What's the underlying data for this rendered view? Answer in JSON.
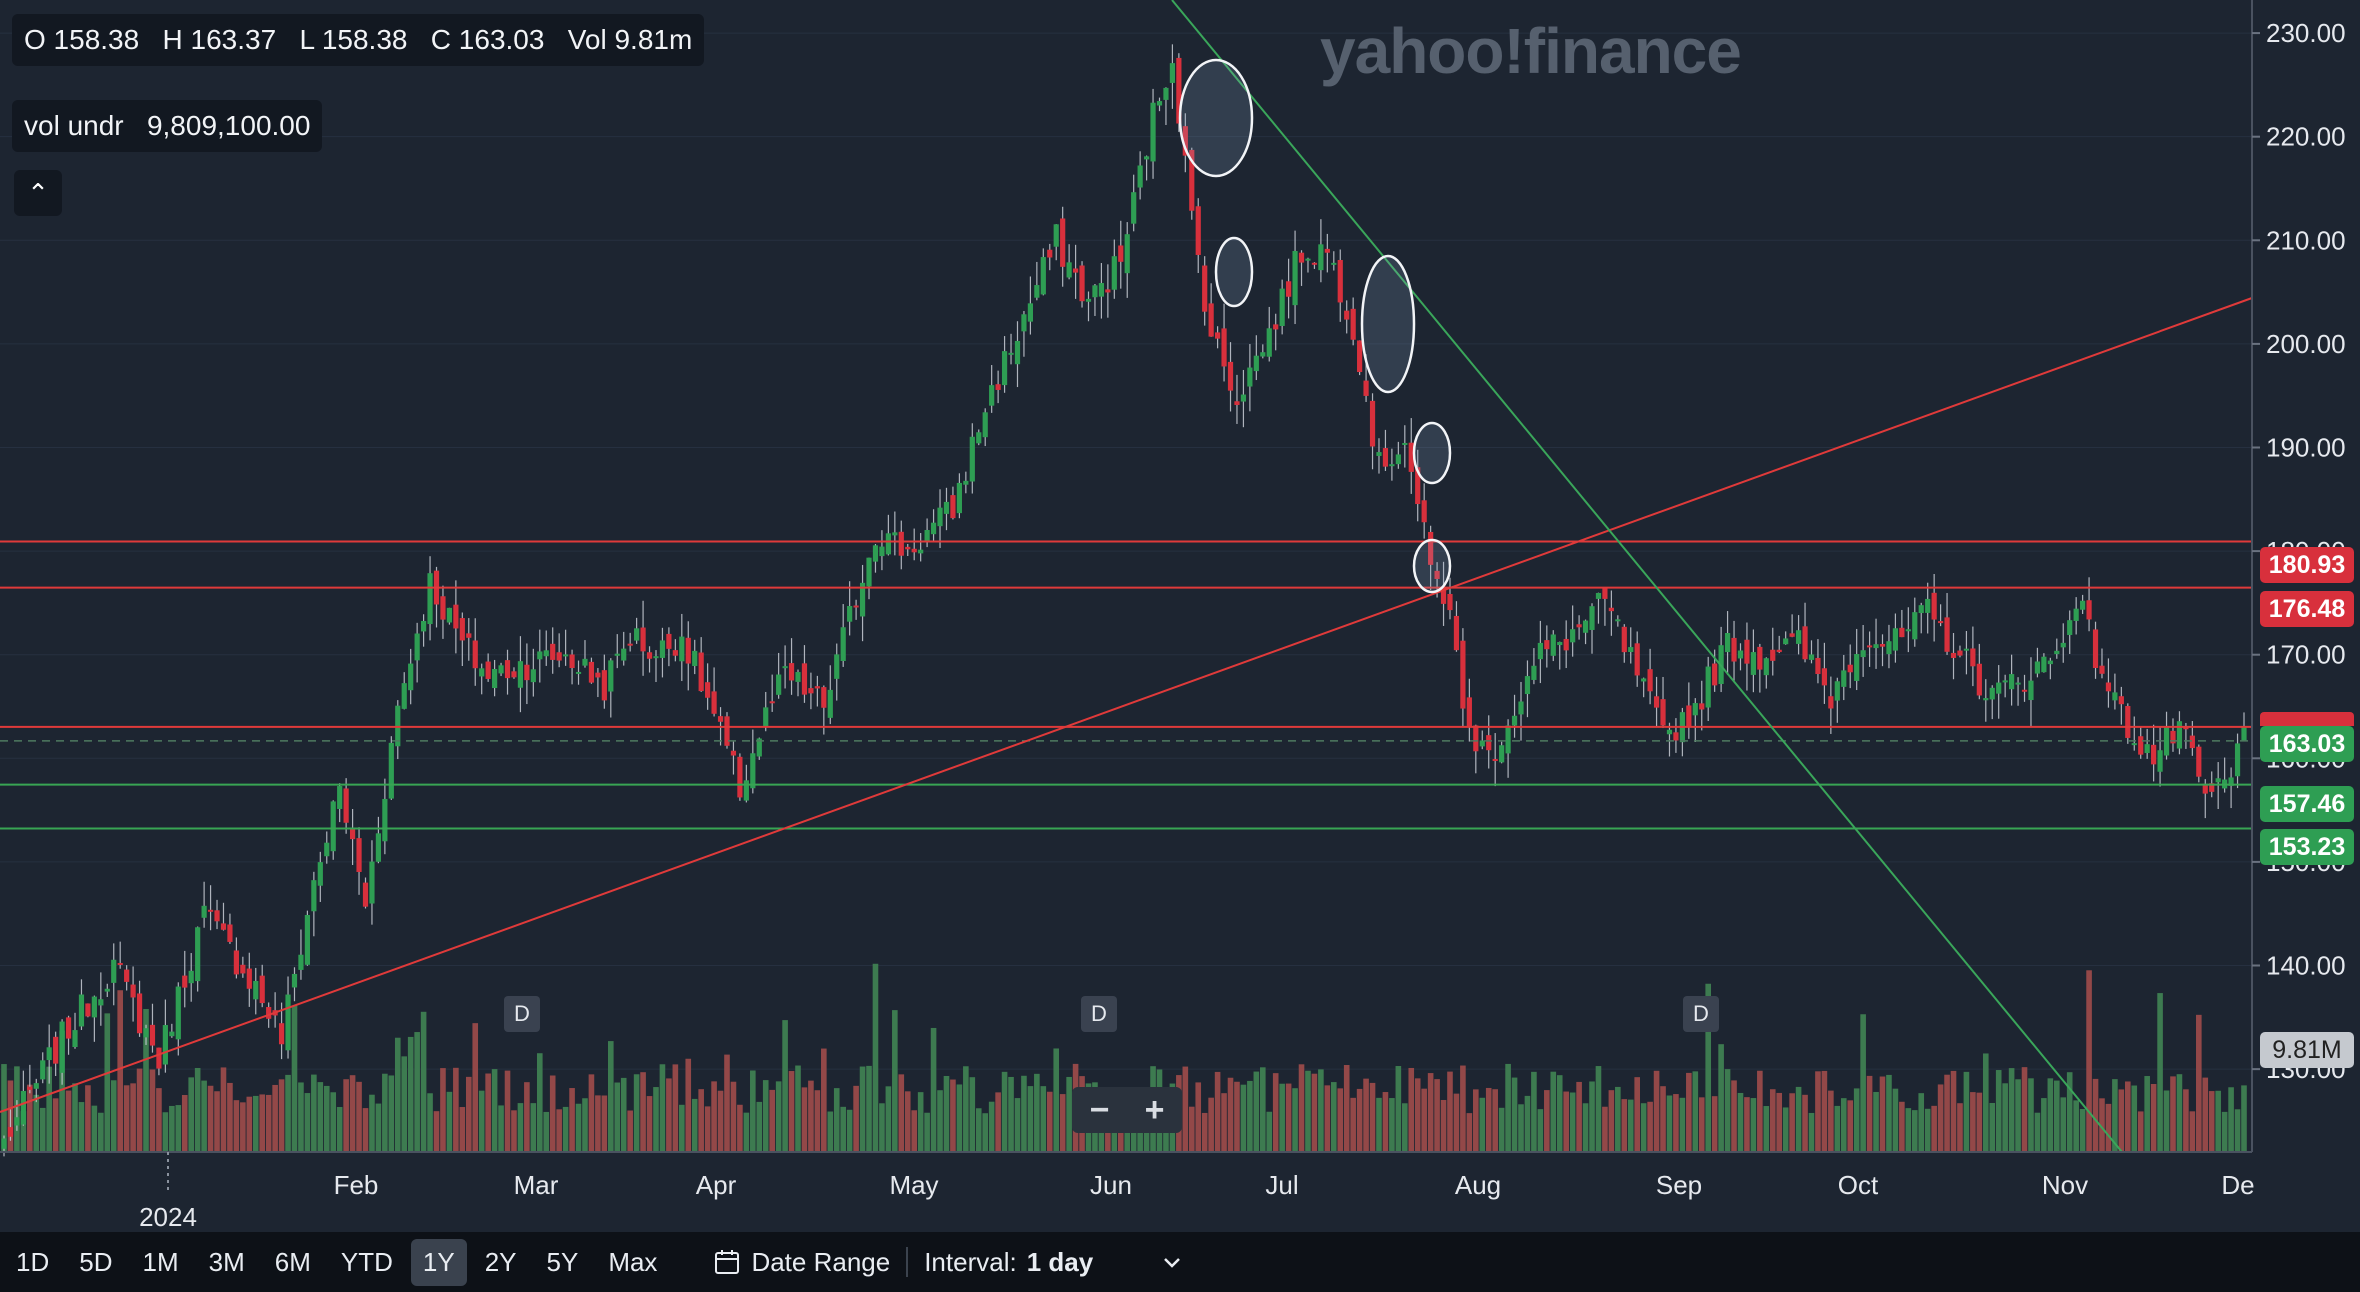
{
  "ohlc_readout": "O 158.38   H 163.37   L 158.38   C 163.03   Vol 9.81m",
  "vol_readout": "vol undr   9,809,100.00",
  "collapse_glyph": "⌃",
  "watermark": "yahoo!finance",
  "zoom": {
    "minus": "−",
    "plus": "+"
  },
  "dividend_marker": "D",
  "price_labels": {
    "r1": "180.93",
    "r2": "176.48",
    "last": "163.03",
    "g1": "157.46",
    "g2": "153.23",
    "vol": "9.81M"
  },
  "colors": {
    "background": "#1d2531",
    "up": "#2e9e53",
    "down": "#d8303c",
    "resistance_line": "#e03a3a",
    "support_line": "#38a553",
    "trend_line": "#3aa65a"
  },
  "axis": {
    "y_ticks": [
      "230.00",
      "220.00",
      "210.00",
      "200.00",
      "190.00",
      "180.00",
      "170.00",
      "160.00",
      "150.00",
      "140.00",
      "130.00"
    ],
    "x_ticks": [
      "Feb",
      "Mar",
      "Apr",
      "May",
      "Jun",
      "Jul",
      "Aug",
      "Sep",
      "Oct",
      "Nov",
      "De"
    ],
    "year_label": "2024"
  },
  "bottom_bar": {
    "ranges": [
      "1D",
      "5D",
      "1M",
      "3M",
      "6M",
      "YTD",
      "1Y",
      "2Y",
      "5Y",
      "Max"
    ],
    "active_range": "1Y",
    "date_range_label": "Date Range",
    "interval_label": "Interval:",
    "interval_value": "1 day"
  },
  "chart_data": {
    "type": "candlestick",
    "y_range": [
      122,
      233
    ],
    "horizontal_levels": [
      180.93,
      176.48,
      163.03,
      157.46,
      153.23
    ],
    "price_path": [
      [
        0,
        123
      ],
      [
        9,
        133
      ],
      [
        17,
        140
      ],
      [
        24,
        131
      ],
      [
        31,
        145
      ],
      [
        39,
        138
      ],
      [
        43,
        133
      ],
      [
        48,
        148
      ],
      [
        52,
        157
      ],
      [
        56,
        146
      ],
      [
        61,
        165
      ],
      [
        66,
        177
      ],
      [
        71,
        171
      ],
      [
        75,
        168
      ],
      [
        80,
        169
      ],
      [
        87,
        170
      ],
      [
        93,
        167
      ],
      [
        97,
        172
      ],
      [
        101,
        170
      ],
      [
        105,
        172
      ],
      [
        110,
        164
      ],
      [
        114,
        157
      ],
      [
        118,
        164
      ],
      [
        121,
        168
      ],
      [
        127,
        165
      ],
      [
        135,
        182
      ],
      [
        140,
        180
      ],
      [
        147,
        184
      ],
      [
        152,
        194
      ],
      [
        157,
        201
      ],
      [
        163,
        210
      ],
      [
        168,
        204
      ],
      [
        173,
        208
      ],
      [
        178,
        222
      ],
      [
        181,
        228
      ],
      [
        184,
        212
      ],
      [
        187,
        201
      ],
      [
        191,
        195
      ],
      [
        196,
        201
      ],
      [
        201,
        209
      ],
      [
        205,
        209
      ],
      [
        209,
        202
      ],
      [
        213,
        188
      ],
      [
        217,
        191
      ],
      [
        221,
        178
      ],
      [
        224,
        175
      ],
      [
        226,
        164
      ],
      [
        230,
        160
      ],
      [
        234,
        165
      ],
      [
        238,
        170
      ],
      [
        243,
        172
      ],
      [
        248,
        175
      ],
      [
        253,
        168
      ],
      [
        257,
        162
      ],
      [
        262,
        165
      ],
      [
        267,
        171
      ],
      [
        272,
        170
      ],
      [
        278,
        171
      ],
      [
        283,
        166
      ],
      [
        288,
        172
      ],
      [
        293,
        171
      ],
      [
        298,
        174
      ],
      [
        303,
        170
      ],
      [
        308,
        166
      ],
      [
        313,
        168
      ],
      [
        318,
        170
      ],
      [
        321,
        176
      ],
      [
        324,
        170
      ],
      [
        328,
        164
      ],
      [
        333,
        160
      ],
      [
        337,
        163
      ],
      [
        341,
        156
      ],
      [
        345,
        158
      ],
      [
        347,
        163
      ]
    ],
    "volume_range": [
      0,
      40000000
    ],
    "volume_scale_reference": 9810000
  }
}
